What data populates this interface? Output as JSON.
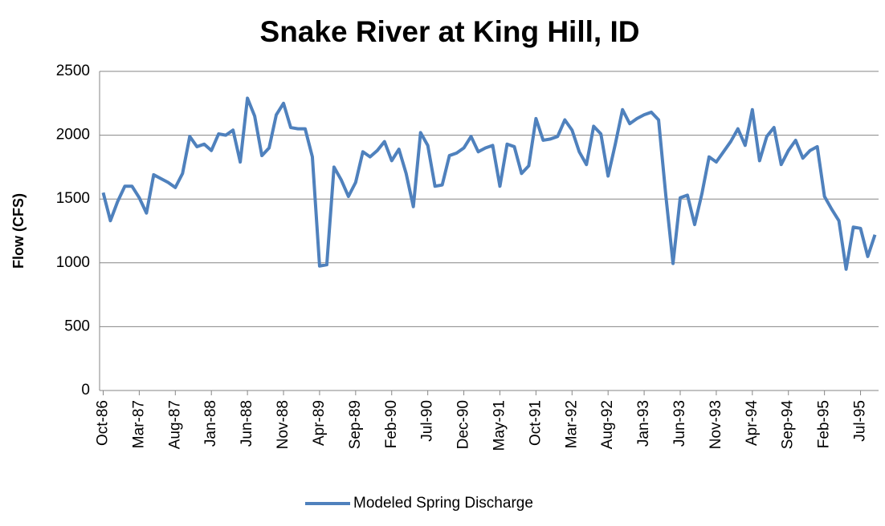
{
  "chart_data": {
    "type": "line",
    "title": "Snake River at King Hill, ID",
    "y_label": "Flow (CFS)",
    "categories": [
      "Oct-86",
      null,
      null,
      null,
      null,
      "Mar-87",
      null,
      null,
      null,
      null,
      "Aug-87",
      null,
      null,
      null,
      null,
      "Jan-88",
      null,
      null,
      null,
      null,
      "Jun-88",
      null,
      null,
      null,
      null,
      "Nov-88",
      null,
      null,
      null,
      null,
      "Apr-89",
      null,
      null,
      null,
      null,
      "Sep-89",
      null,
      null,
      null,
      null,
      "Feb-90",
      null,
      null,
      null,
      null,
      "Jul-90",
      null,
      null,
      null,
      null,
      "Dec-90",
      null,
      null,
      null,
      null,
      "May-91",
      null,
      null,
      null,
      null,
      "Oct-91",
      null,
      null,
      null,
      null,
      "Mar-92",
      null,
      null,
      null,
      null,
      "Aug-92",
      null,
      null,
      null,
      null,
      "Jan-93",
      null,
      null,
      null,
      null,
      "Jun-93",
      null,
      null,
      null,
      null,
      "Nov-93",
      null,
      null,
      null,
      null,
      "Apr-94",
      null,
      null,
      null,
      null,
      "Sep-94",
      null,
      null,
      null,
      null,
      "Feb-95",
      null,
      null,
      null,
      null,
      "Jul-95",
      null,
      null
    ],
    "series": [
      {
        "name": "Modeled Spring Discharge",
        "color": "#4f81bd",
        "values": [
          1550,
          1330,
          1480,
          1600,
          1600,
          1510,
          1390,
          1690,
          1660,
          1630,
          1590,
          1700,
          1990,
          1910,
          1930,
          1880,
          2010,
          2000,
          2040,
          1790,
          2290,
          2150,
          1840,
          1900,
          2160,
          2250,
          2060,
          2050,
          2050,
          1830,
          975,
          985,
          1750,
          1650,
          1520,
          1630,
          1870,
          1830,
          1880,
          1950,
          1800,
          1890,
          1700,
          1440,
          2020,
          1920,
          1600,
          1610,
          1840,
          1860,
          1900,
          1990,
          1870,
          1900,
          1920,
          1600,
          1930,
          1910,
          1700,
          1760,
          2130,
          1960,
          1970,
          1990,
          2120,
          2040,
          1870,
          1770,
          2070,
          2010,
          1680,
          1930,
          2200,
          2090,
          2130,
          2160,
          2180,
          2120,
          1530,
          995,
          1510,
          1530,
          1300,
          1540,
          1830,
          1790,
          1870,
          1950,
          2050,
          1920,
          2200,
          1800,
          1990,
          2060,
          1770,
          1880,
          1960,
          1820,
          1880,
          1910,
          1520,
          1420,
          1330,
          950,
          1280,
          1270,
          1050,
          1220
        ]
      }
    ],
    "ylim": [
      0,
      2500
    ],
    "yticks": [
      0,
      500,
      1000,
      1500,
      2000,
      2500
    ],
    "grid": true,
    "legend": "bottom"
  }
}
